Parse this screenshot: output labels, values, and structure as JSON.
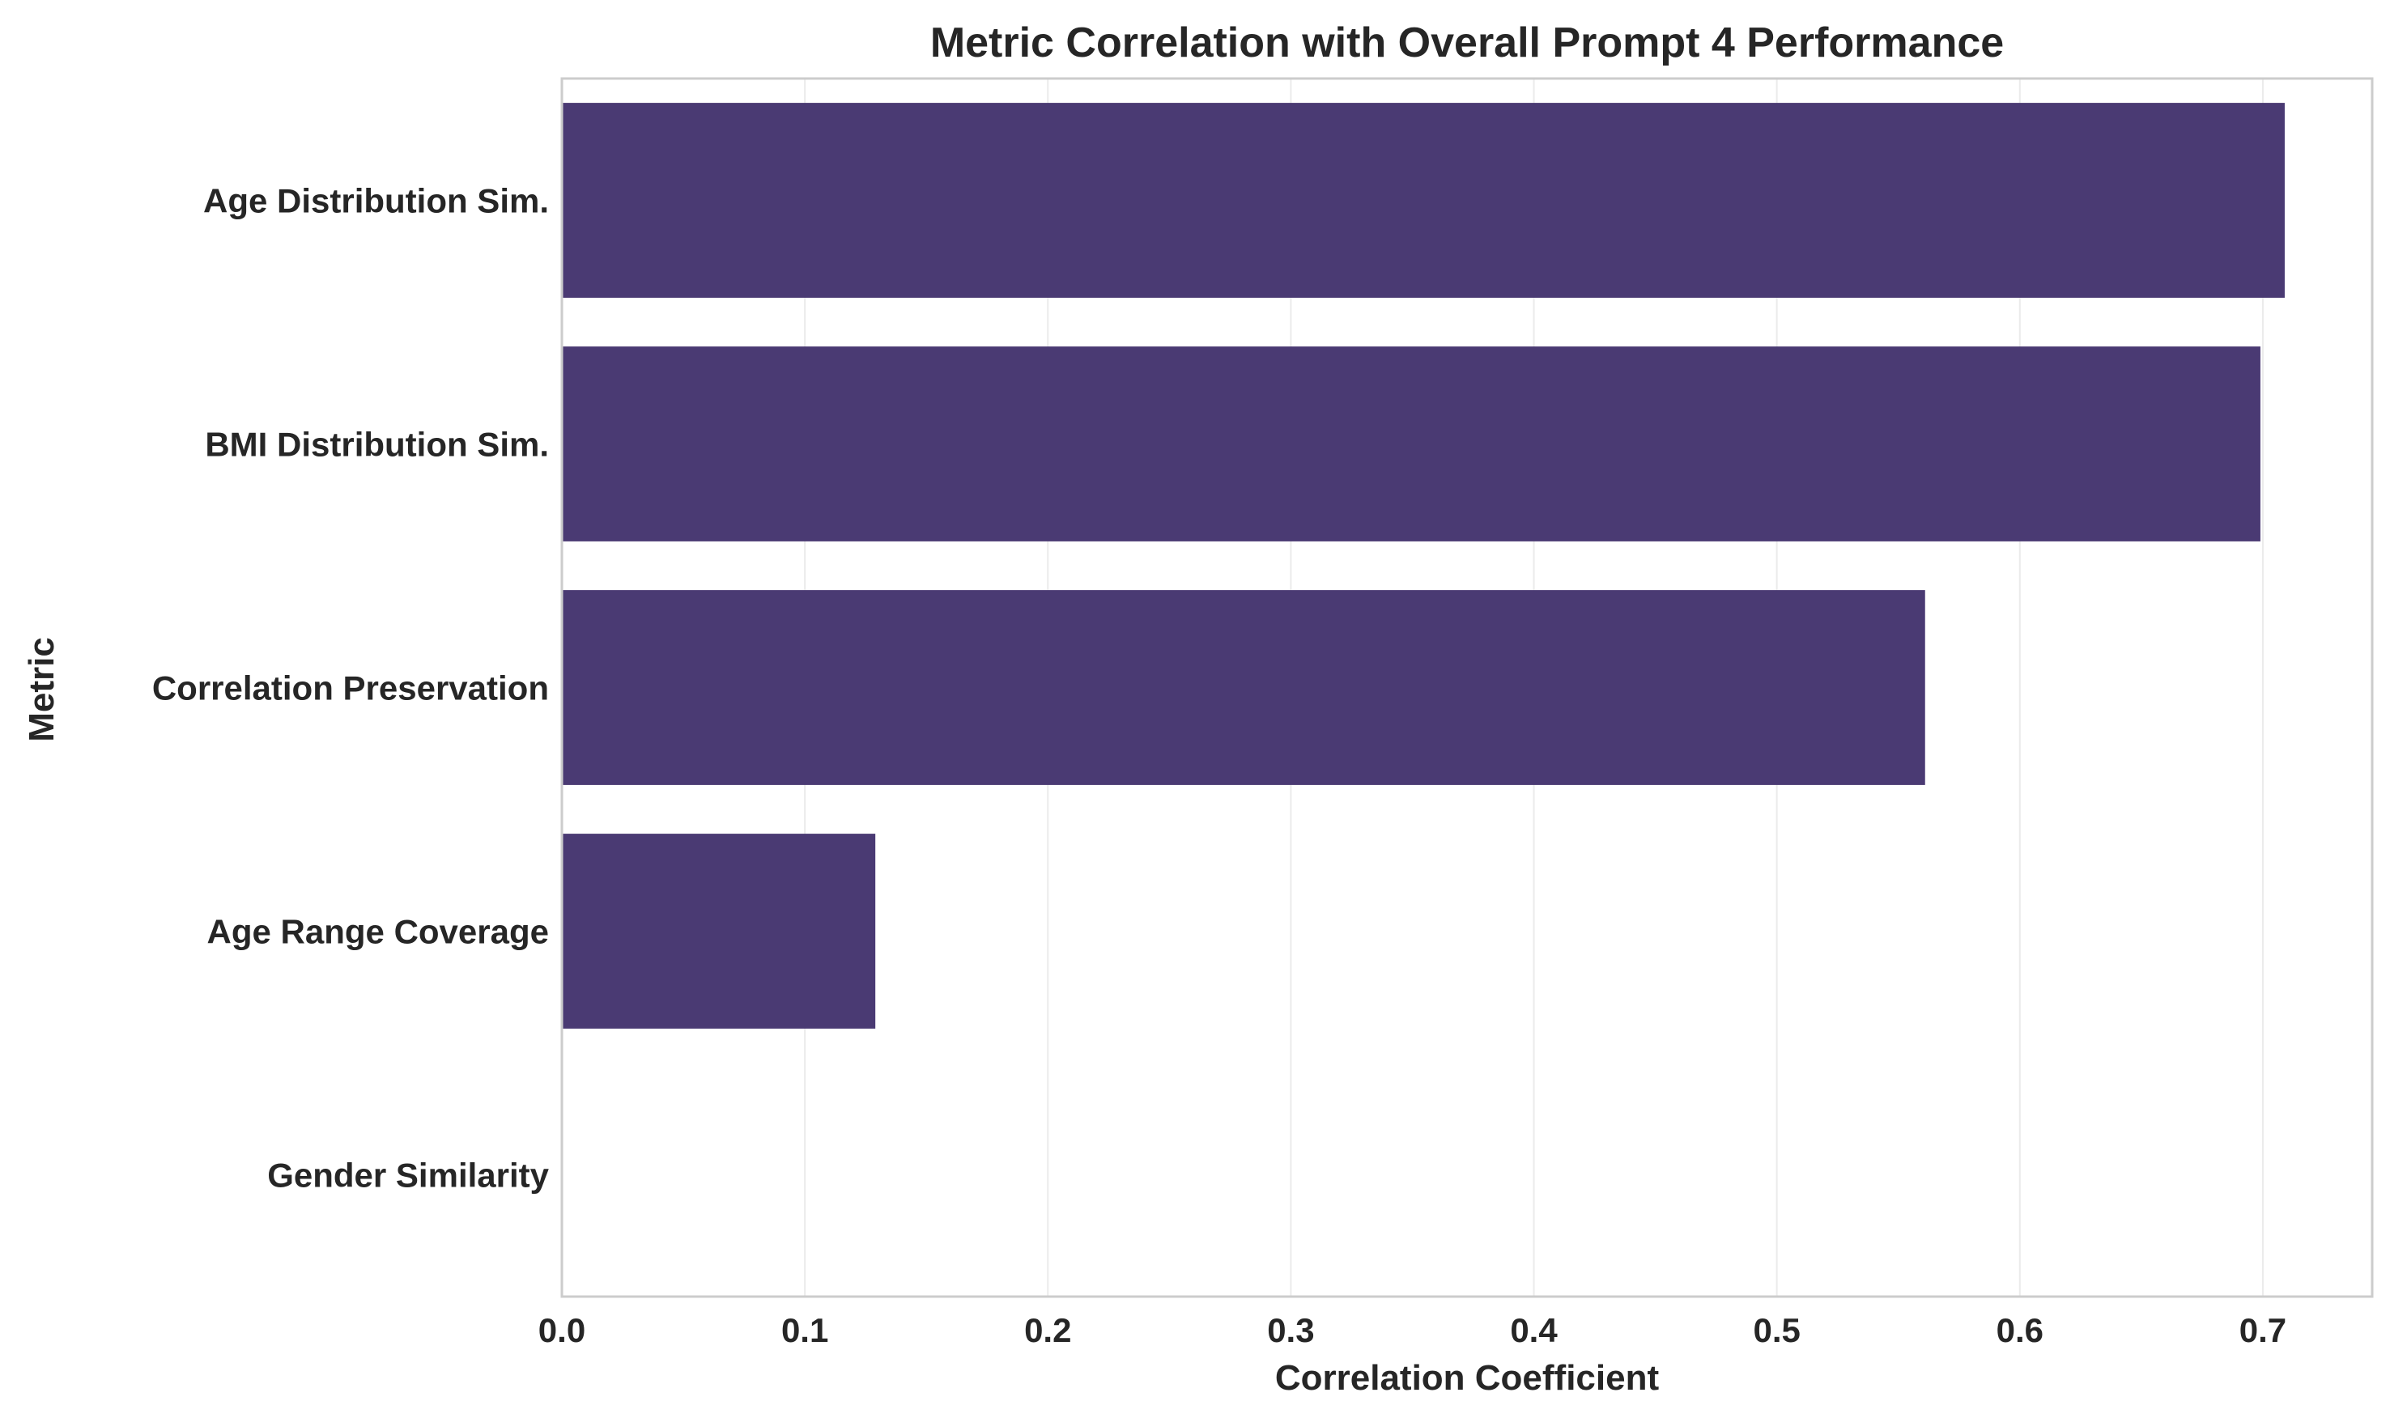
{
  "chart_data": {
    "type": "bar",
    "orientation": "horizontal",
    "title": "Metric Correlation with Overall Prompt 4 Performance",
    "xlabel": "Correlation Coefficient",
    "ylabel": "Metric",
    "categories": [
      "Age Distribution Sim.",
      "BMI Distribution Sim.",
      "Correlation Preservation",
      "Age Range Coverage",
      "Gender Similarity"
    ],
    "values": [
      0.709,
      0.699,
      0.561,
      0.129,
      0.0
    ],
    "xlim": [
      0,
      0.745
    ],
    "xticks": [
      0.0,
      0.1,
      0.2,
      0.3,
      0.4,
      0.5,
      0.6,
      0.7
    ],
    "xtick_labels": [
      "0.0",
      "0.1",
      "0.2",
      "0.3",
      "0.4",
      "0.5",
      "0.6",
      "0.7"
    ],
    "grid": true,
    "bar_color": "#4a3a73"
  }
}
